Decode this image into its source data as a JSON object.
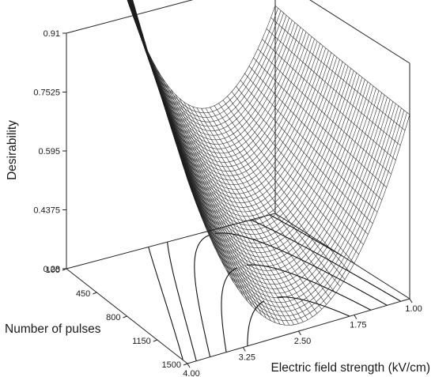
{
  "chart_data": {
    "type": "surface3d",
    "title": "",
    "xlabel": "Electric field strength (kV/cm)",
    "ylabel": "Number of pulses",
    "zlabel": "Desirability",
    "x_ticks": [
      "1.00",
      "1.75",
      "2.50",
      "3.25",
      "4.00"
    ],
    "y_ticks": [
      "100",
      "450",
      "800",
      "1150",
      "1500"
    ],
    "z_ticks": [
      "0.28",
      "0.4375",
      "0.595",
      "0.7525",
      "0.91"
    ],
    "xlim": [
      1.0,
      4.0
    ],
    "ylim": [
      100,
      1500
    ],
    "zlim": [
      0.28,
      0.91
    ],
    "surface_corners": [
      {
        "x": 4.0,
        "y": 100,
        "z": 0.91
      },
      {
        "x": 1.0,
        "y": 100,
        "z": 0.86
      },
      {
        "x": 1.0,
        "y": 1500,
        "z": 0.5
      },
      {
        "x": 4.0,
        "y": 1500,
        "z": 0.42
      }
    ],
    "surface_minimum": {
      "x": 2.5,
      "y": 1500,
      "z": 0.3
    },
    "contour_levels": [
      0.4,
      0.5,
      0.6,
      0.7,
      0.8
    ],
    "mesh": "on",
    "projected_contours": "on"
  }
}
